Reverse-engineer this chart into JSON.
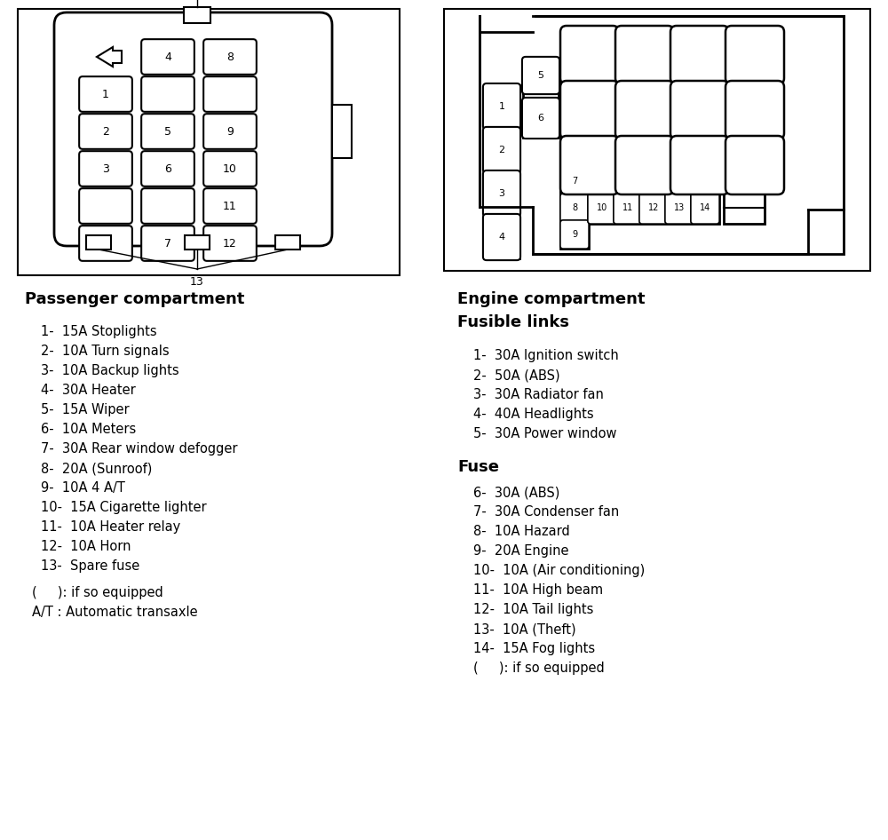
{
  "bg_color": "#ffffff",
  "passenger_title": "Passenger compartment",
  "passenger_items": [
    "1-  15A Stoplights",
    "2-  10A Turn signals",
    "3-  10A Backup lights",
    "4-  30A Heater",
    "5-  15A Wiper",
    "6-  10A Meters",
    "7-  30A Rear window defogger",
    "8-  20A (Sunroof)",
    "9-  10A 4 A/T",
    "10-  15A Cigarette lighter",
    "11-  10A Heater relay",
    "12-  10A Horn",
    "13-  Spare fuse"
  ],
  "passenger_footnotes": [
    "(     ): if so equipped",
    "A/T : Automatic transaxle"
  ],
  "engine_title1": "Engine compartment",
  "engine_title2": "Fusible links",
  "engine_links": [
    "1-  30A Ignition switch",
    "2-  50A (ABS)",
    "3-  30A Radiator fan",
    "4-  40A Headlights",
    "5-  30A Power window"
  ],
  "fuse_title": "Fuse",
  "engine_fuses": [
    "6-  30A (ABS)",
    "7-  30A Condenser fan",
    "8-  10A Hazard",
    "9-  20A Engine",
    "10-  10A (Air conditioning)",
    "11-  10A High beam",
    "12-  10A Tail lights",
    "13-  10A (Theft)",
    "14-  15A Fog lights",
    "(     ): if so equipped"
  ]
}
